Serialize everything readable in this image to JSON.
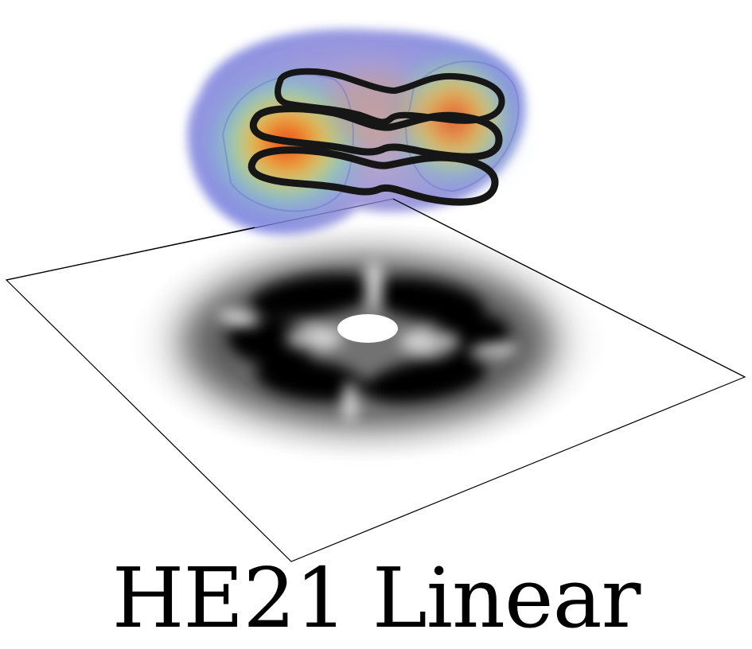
{
  "caption": "HE21 Linear",
  "colors": {
    "background": "#ffffff",
    "frame_line": "#000000",
    "pattern_dark": "#000000",
    "ring": "#1a1a1a",
    "field_cool": "#6a78d8",
    "field_mid": "#7ad0b0",
    "field_warm": "#f0c040",
    "field_hot": "#e02010"
  }
}
